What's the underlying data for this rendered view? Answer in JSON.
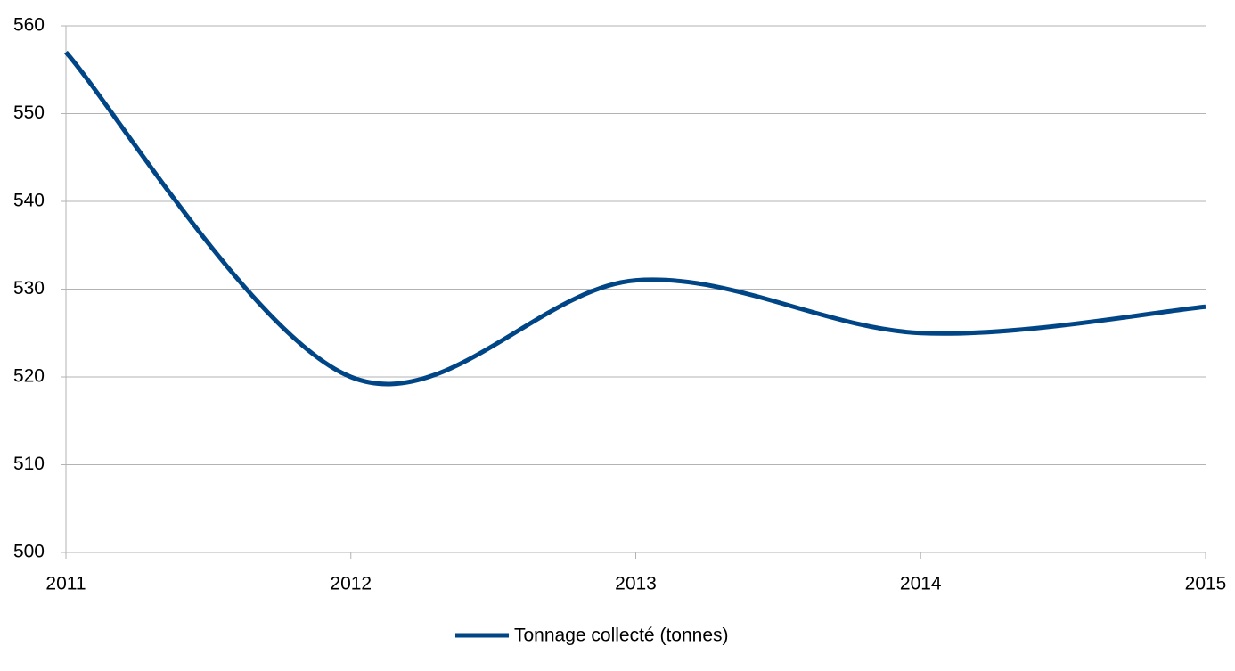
{
  "chart_data": {
    "type": "line",
    "x": [
      2011,
      2012,
      2013,
      2014,
      2015
    ],
    "series": [
      {
        "name": "Tonnage collecté (tonnes)",
        "color": "#004586",
        "values": [
          557,
          520,
          531,
          525,
          528
        ]
      }
    ],
    "xlim": [
      2011,
      2015
    ],
    "xticks": [
      2011,
      2012,
      2013,
      2014,
      2015
    ],
    "ylim": [
      500,
      560
    ],
    "yticks": [
      500,
      510,
      520,
      530,
      540,
      550,
      560
    ],
    "grid": true,
    "smooth": true,
    "legend": "bottom"
  }
}
